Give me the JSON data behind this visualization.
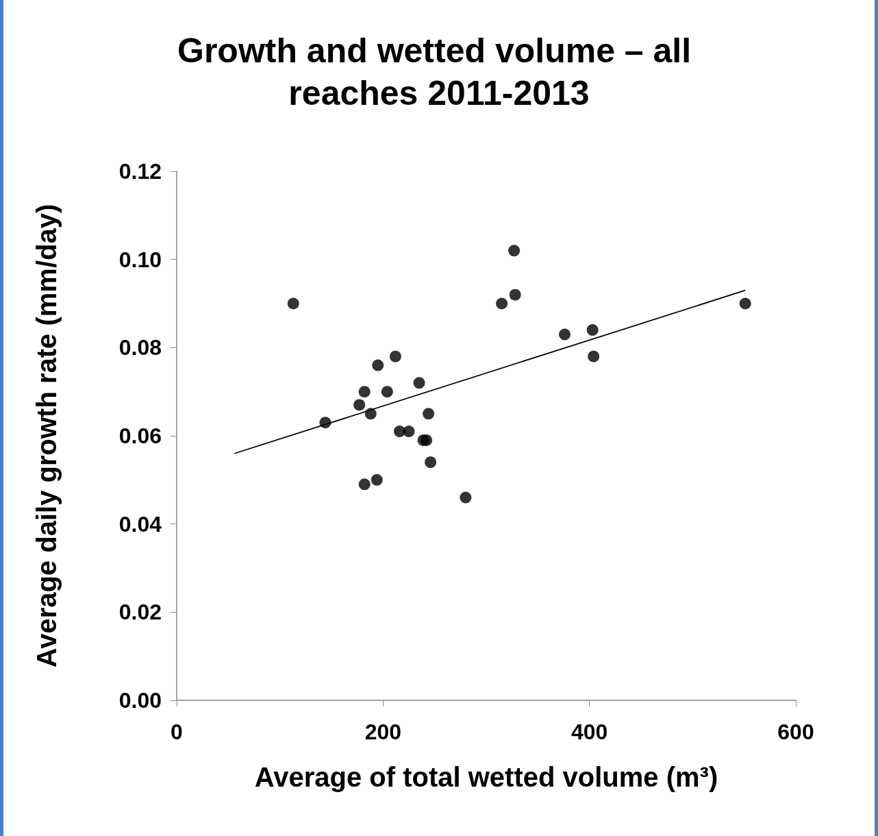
{
  "chart_data": {
    "type": "scatter",
    "title": "Growth and wetted volume – all reaches 2011-2013",
    "xlabel": "Average of total wetted volume (m³)",
    "ylabel": "Average daily growth rate (mm/day)",
    "xlim": [
      0,
      600
    ],
    "xticks": [
      0,
      200,
      400,
      600
    ],
    "ylim": [
      0,
      0.12
    ],
    "yticks": [
      {
        "value": 0,
        "label": "0.00"
      },
      {
        "value": 0.02,
        "label": "0.02"
      },
      {
        "value": 0.04,
        "label": "0.04"
      },
      {
        "value": 0.06,
        "label": "0.06"
      },
      {
        "value": 0.08,
        "label": "0.08"
      },
      {
        "value": 0.1,
        "label": "0.10"
      },
      {
        "value": 0.12,
        "label": "0.12"
      }
    ],
    "grid": false,
    "marker": "circle",
    "series": [
      {
        "color": "#000000",
        "x": [
          113,
          144,
          177,
          182,
          188,
          182,
          195,
          194,
          204,
          212,
          216,
          225,
          235,
          239,
          242,
          244,
          246,
          280,
          315,
          327,
          328,
          376,
          403,
          404,
          551
        ],
        "values": [
          0.09,
          0.063,
          0.067,
          0.07,
          0.065,
          0.049,
          0.076,
          0.05,
          0.07,
          0.078,
          0.061,
          0.061,
          0.072,
          0.059,
          0.059,
          0.065,
          0.054,
          0.046,
          0.09,
          0.102,
          0.092,
          0.083,
          0.084,
          0.078,
          0.09
        ]
      },
      {
        "type": "line",
        "color": "#000000",
        "marker": "none",
        "x": [
          56,
          551
        ],
        "values": [
          0.056,
          0.093
        ]
      }
    ]
  }
}
